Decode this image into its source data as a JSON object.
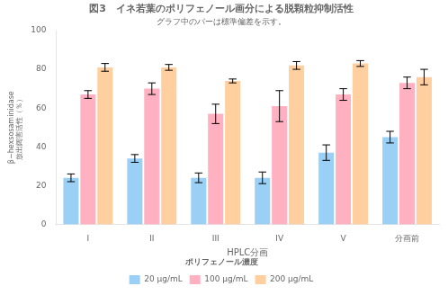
{
  "chart_data": {
    "type": "bar",
    "title": "図3　イネ若葉のポリフェノール画分による脱顆粒抑制活性",
    "subtitle": "グラフ中のバーは標準偏差を示す。",
    "xlabel": "HPLC分画",
    "ylabel": [
      "β−hexsosaminidase",
      "放出阔害活性（％）"
    ],
    "legend_title": "ポリフェノール濃度",
    "categories": [
      "I",
      "II",
      "III",
      "IV",
      "V",
      "分画前"
    ],
    "series": [
      {
        "name": "20 μg/mL",
        "values": [
          24,
          34,
          24,
          24,
          37,
          45
        ],
        "errors": [
          2,
          2,
          2.5,
          3,
          4,
          3
        ]
      },
      {
        "name": "100 μg/mL",
        "values": [
          67,
          70,
          57,
          61,
          67,
          73
        ],
        "errors": [
          2,
          3,
          5,
          8,
          3,
          3
        ]
      },
      {
        "name": "200 μg/mL",
        "values": [
          81,
          81,
          74,
          82,
          83,
          76
        ],
        "errors": [
          2,
          1.5,
          1,
          2,
          1.5,
          4
        ]
      }
    ],
    "ylim": [
      0,
      100
    ],
    "yticks": [
      0,
      20,
      40,
      60,
      80,
      100
    ],
    "grid": false,
    "legend": "bottom"
  }
}
